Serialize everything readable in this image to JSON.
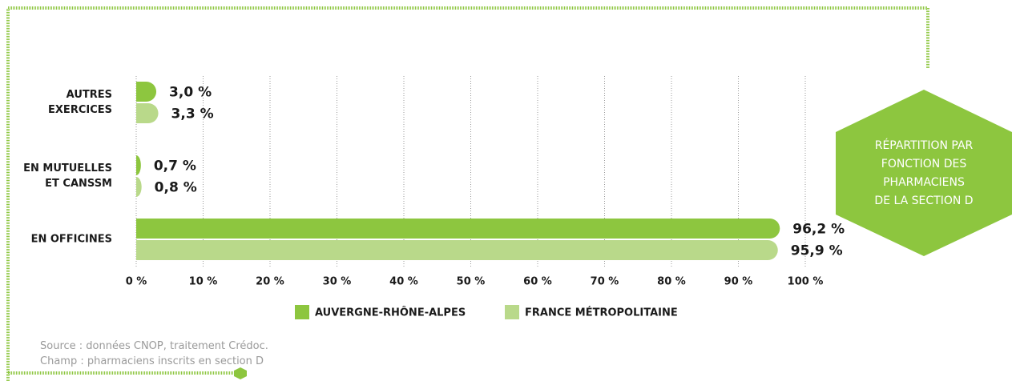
{
  "chart_data": {
    "type": "barh",
    "title": "RÉPARTITION PAR\nFONCTION DES\nPHARMACIENS\nDE LA SECTION D",
    "categories": [
      "AUTRES\nEXERCICES",
      "EN MUTUELLES\nET CANSSM",
      "EN OFFICINES"
    ],
    "series": [
      {
        "name": "AUVERGNE-RHÔNE-ALPES",
        "color": "#8dc63f",
        "values": [
          3.0,
          0.7,
          96.2
        ],
        "value_labels": [
          "3,0 %",
          "0,7 %",
          "96,2 %"
        ]
      },
      {
        "name": "FRANCE MÉTROPOLITAINE",
        "color": "#b9d98a",
        "values": [
          3.3,
          0.8,
          95.9
        ],
        "value_labels": [
          "3,3 %",
          "0,8 %",
          "95,9 %"
        ]
      }
    ],
    "xlim": [
      0,
      100
    ],
    "xticks": [
      {
        "value": 0,
        "label": "0 %"
      },
      {
        "value": 10,
        "label": "10 %"
      },
      {
        "value": 20,
        "label": "20 %"
      },
      {
        "value": 30,
        "label": "30 %"
      },
      {
        "value": 40,
        "label": "40 %"
      },
      {
        "value": 50,
        "label": "50 %"
      },
      {
        "value": 60,
        "label": "60 %"
      },
      {
        "value": 70,
        "label": "70 %"
      },
      {
        "value": 80,
        "label": "80 %"
      },
      {
        "value": 90,
        "label": "90 %"
      },
      {
        "value": 100,
        "label": "100 %"
      }
    ],
    "grid": true,
    "legend": "bottom",
    "notes": [
      "Source : données CNOP, traitement Crédoc.",
      "Champ : pharmaciens inscrits en section D"
    ]
  }
}
